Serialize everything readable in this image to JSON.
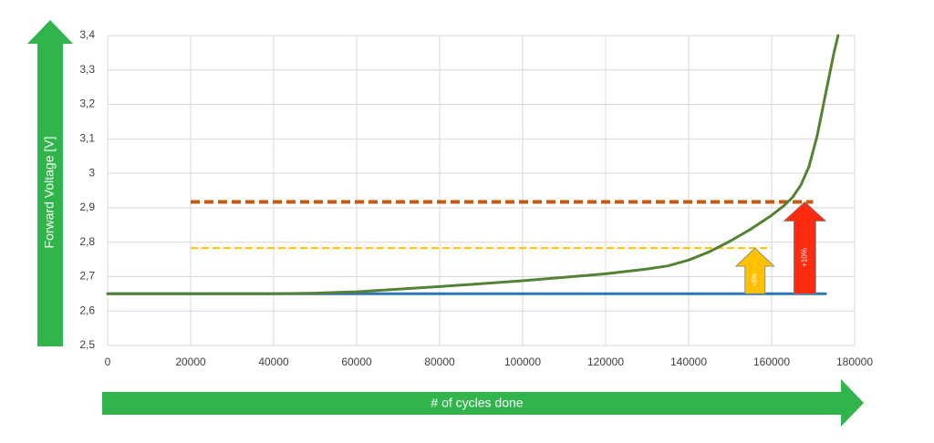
{
  "chart_data": {
    "type": "line",
    "title": "",
    "xlabel": "# of cycles done",
    "ylabel": "Forward Voltage [V]",
    "xlim": [
      0,
      180000
    ],
    "ylim": [
      2.5,
      3.4
    ],
    "x_ticks": [
      "0",
      "20000",
      "40000",
      "60000",
      "80000",
      "100000",
      "120000",
      "140000",
      "160000",
      "180000"
    ],
    "y_ticks": [
      "2,5",
      "2,6",
      "2,7",
      "2,8",
      "2,9",
      "3",
      "3,1",
      "3,2",
      "3,3",
      "3,4"
    ],
    "grid": true,
    "series": [
      {
        "color": "#548235",
        "style": "solid",
        "x": [
          0,
          40000,
          50000,
          60000,
          80000,
          100000,
          120000,
          130000,
          135000,
          140000,
          145000,
          150000,
          155000,
          160000,
          163000,
          165000,
          167000,
          169000,
          171000,
          173000,
          175000,
          176000
        ],
        "y": [
          2.65,
          2.65,
          2.652,
          2.656,
          2.671,
          2.688,
          2.708,
          2.722,
          2.731,
          2.748,
          2.772,
          2.803,
          2.838,
          2.878,
          2.906,
          2.93,
          2.965,
          3.02,
          3.11,
          3.23,
          3.35,
          3.4
        ]
      },
      {
        "color": "#2E75B6",
        "style": "solid",
        "x": [
          0,
          173000
        ],
        "y": [
          2.65,
          2.65
        ]
      },
      {
        "color": "#FFC000",
        "style": "dashed",
        "x": [
          20000,
          160000
        ],
        "y": [
          2.783,
          2.783
        ]
      },
      {
        "color": "#C55A11",
        "style": "dashed",
        "x": [
          20000,
          170000
        ],
        "y": [
          2.917,
          2.917
        ]
      }
    ],
    "annotations": [
      {
        "text": "+5%",
        "color": "#FFC000",
        "x": 156000,
        "y_from": 2.65,
        "y_to": 2.783
      },
      {
        "text": "+10%",
        "color": "#FF2B0F",
        "x": 168000,
        "y_from": 2.65,
        "y_to": 2.917
      }
    ]
  },
  "colors": {
    "axis_arrow": "#31B44B",
    "grid": "#D9D9D9"
  }
}
